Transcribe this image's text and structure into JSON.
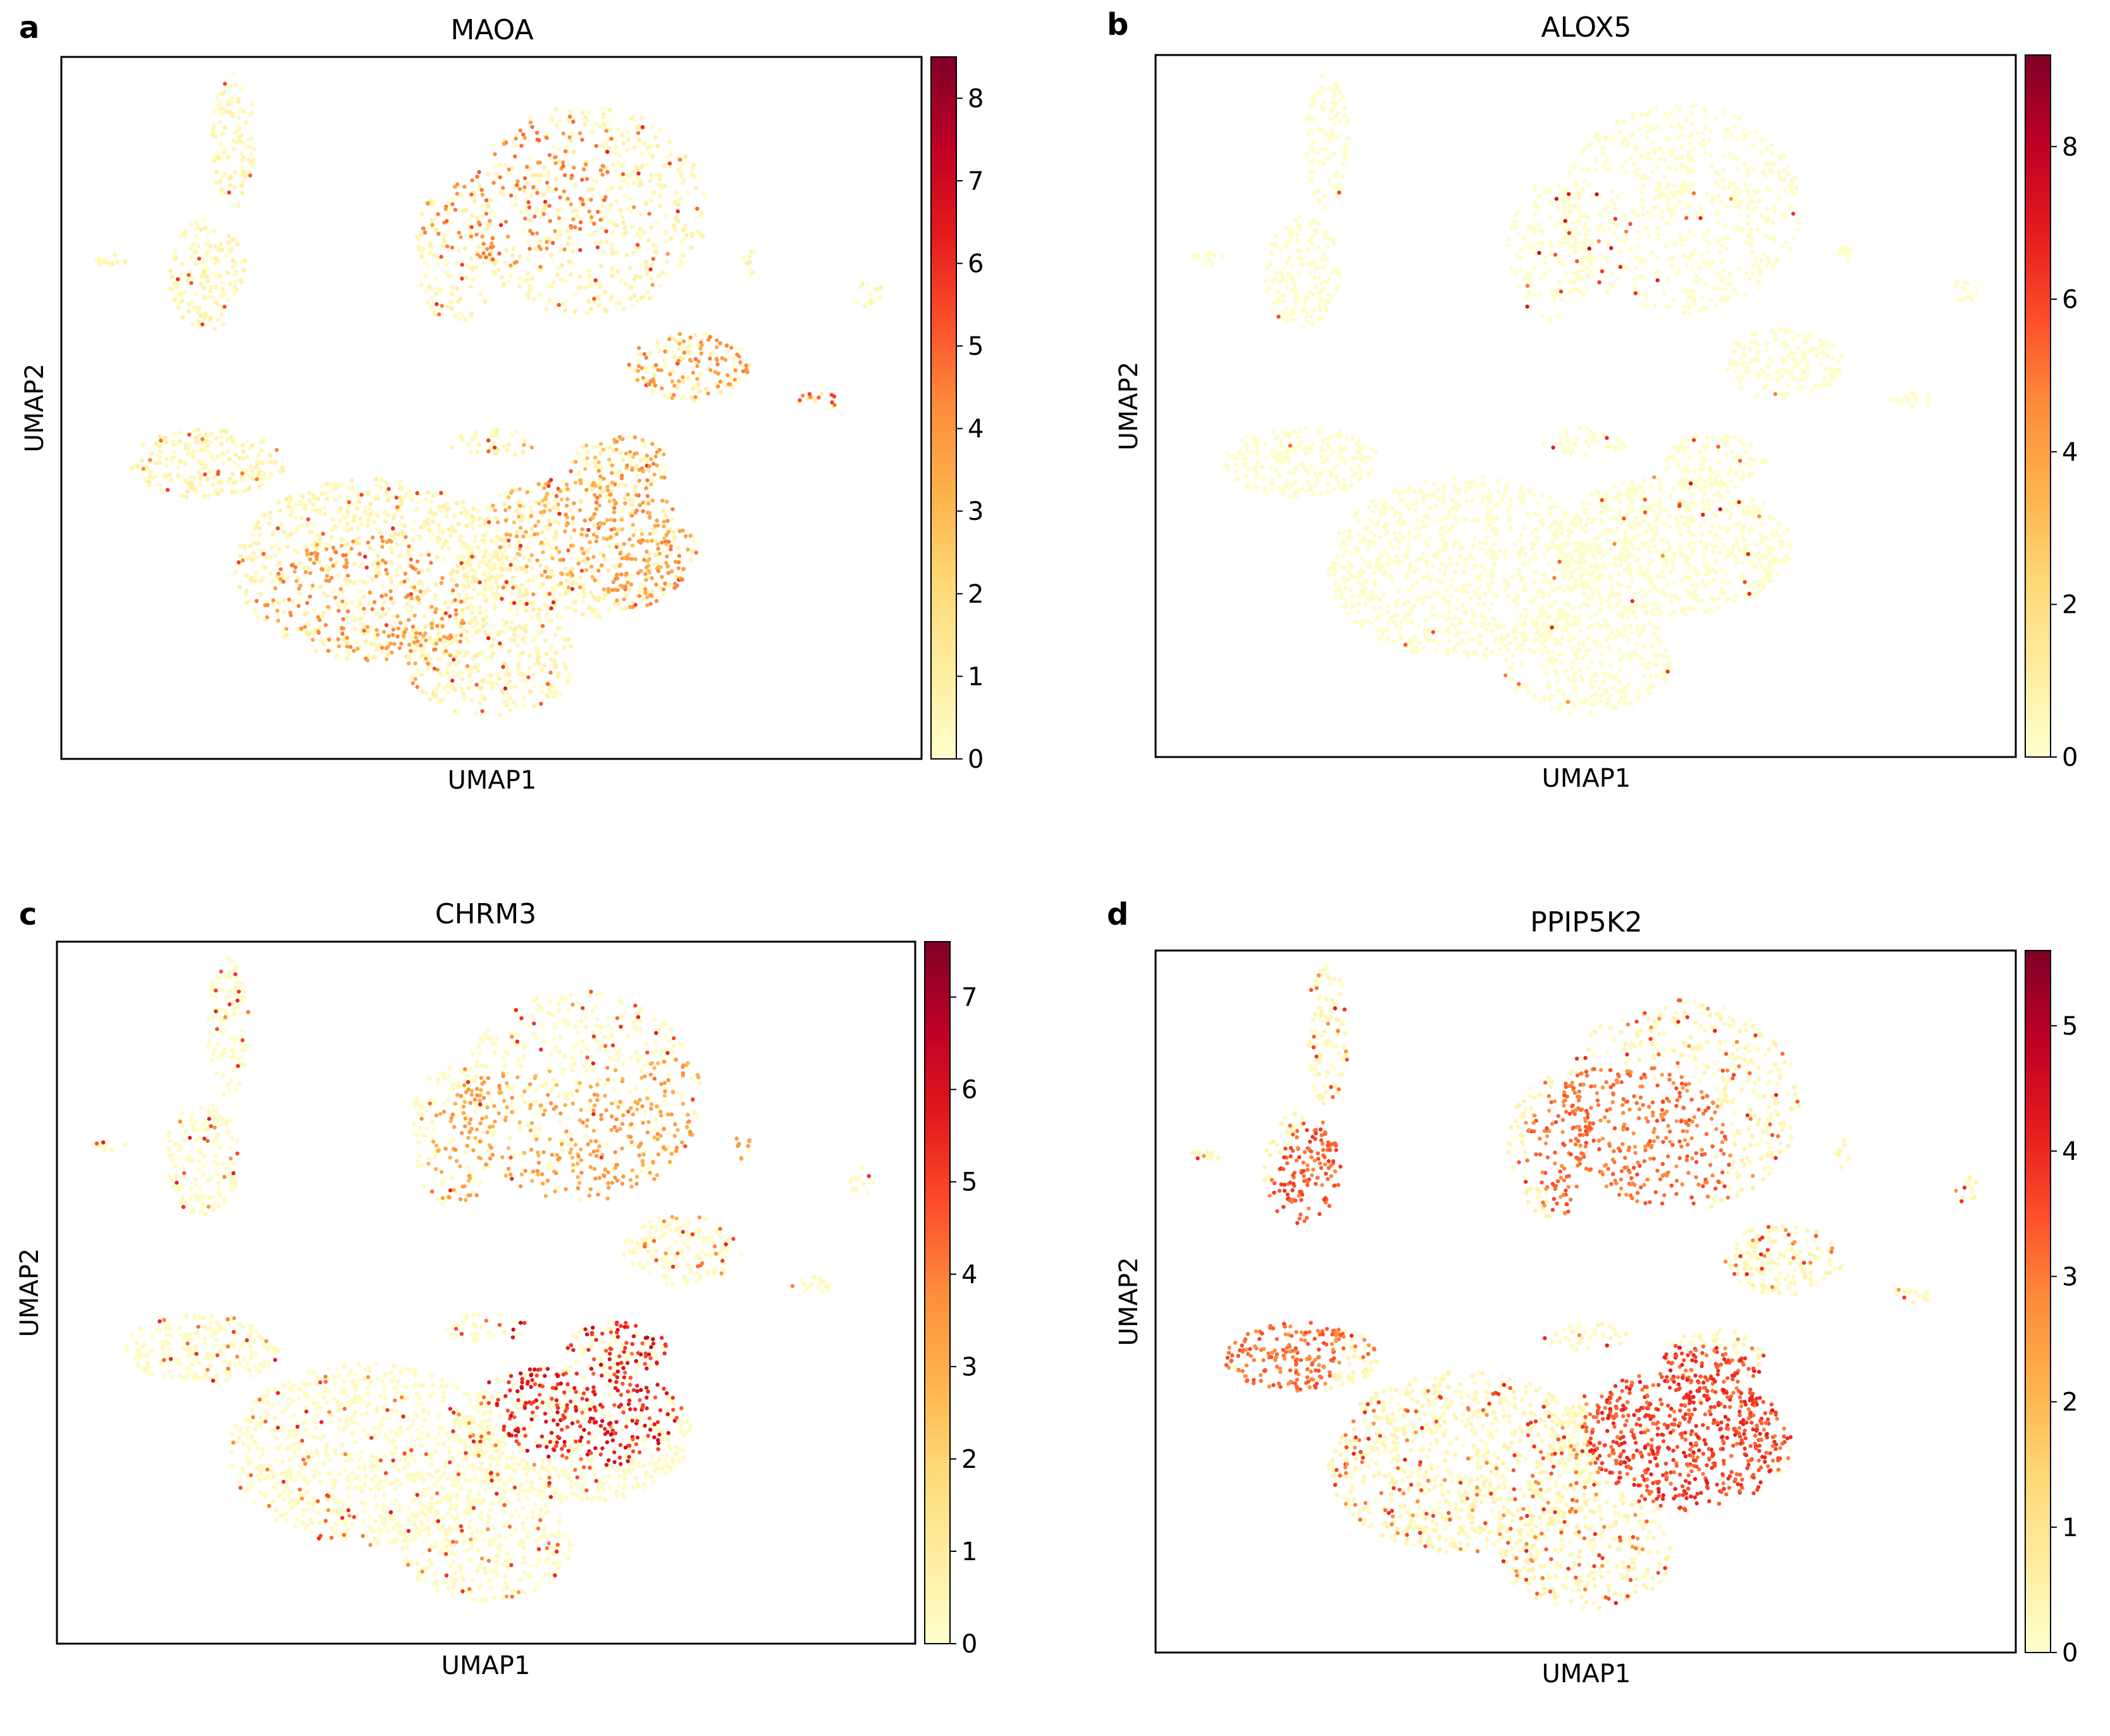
{
  "chart_data": [
    {
      "type": "scatter",
      "panel_label": "a",
      "title": "MAOA",
      "xlabel": "UMAP1",
      "ylabel": "UMAP2",
      "colorbar": {
        "min": 0,
        "max": 8.5,
        "ticks": [
          0,
          1,
          2,
          3,
          4,
          5,
          6,
          7,
          8
        ]
      },
      "hotspots": [
        {
          "x": 0.62,
          "y": 0.64,
          "level": 0.45
        },
        {
          "x": 0.72,
          "y": 0.46,
          "level": 0.55
        },
        {
          "x": 0.52,
          "y": 0.18,
          "level": 0.6
        },
        {
          "x": 0.95,
          "y": 0.48,
          "level": 0.7
        },
        {
          "x": 0.72,
          "y": 0.68,
          "level": 0.55
        },
        {
          "x": 0.35,
          "y": 0.8,
          "level": 0.55
        }
      ],
      "background_level": 0.12,
      "hot_fraction": 0.22
    },
    {
      "type": "scatter",
      "panel_label": "b",
      "title": "ALOX5",
      "xlabel": "UMAP1",
      "ylabel": "UMAP2",
      "colorbar": {
        "min": 0,
        "max": 9.2,
        "ticks": [
          0,
          2,
          4,
          6,
          8
        ]
      },
      "hotspots": [
        {
          "x": 0.47,
          "y": 0.31,
          "level": 0.85
        },
        {
          "x": 0.58,
          "y": 0.56,
          "level": 0.8
        }
      ],
      "background_level": 0.02,
      "hot_fraction": 0.03
    },
    {
      "type": "scatter",
      "panel_label": "c",
      "title": "CHRM3",
      "xlabel": "UMAP1",
      "ylabel": "UMAP2",
      "colorbar": {
        "min": 0,
        "max": 7.6,
        "ticks": [
          0,
          1,
          2,
          3,
          4,
          5,
          6,
          7
        ]
      },
      "hotspots": [
        {
          "x": 0.55,
          "y": 0.3,
          "level": 0.5
        },
        {
          "x": 0.62,
          "y": 0.63,
          "level": 0.85
        },
        {
          "x": 0.72,
          "y": 0.28,
          "level": 0.5
        }
      ],
      "background_level": 0.05,
      "hot_fraction": 0.35
    },
    {
      "type": "scatter",
      "panel_label": "d",
      "title": "PPIP5K2",
      "xlabel": "UMAP1",
      "ylabel": "UMAP2",
      "colorbar": {
        "min": 0,
        "max": 5.6,
        "ticks": [
          0,
          1,
          2,
          3,
          4,
          5
        ]
      },
      "hotspots": [
        {
          "x": 0.25,
          "y": 0.35,
          "level": 0.7
        },
        {
          "x": 0.62,
          "y": 0.68,
          "level": 0.75
        },
        {
          "x": 0.55,
          "y": 0.28,
          "level": 0.65
        },
        {
          "x": 0.1,
          "y": 0.55,
          "level": 0.65
        }
      ],
      "background_level": 0.1,
      "hot_fraction": 0.55
    }
  ],
  "colormap": {
    "name": "YlOrRd",
    "stops": [
      "#ffffcc",
      "#ffeda0",
      "#fed976",
      "#feb24c",
      "#fd8d3c",
      "#fc4e2a",
      "#e31a1c",
      "#bd0026",
      "#800026"
    ]
  }
}
